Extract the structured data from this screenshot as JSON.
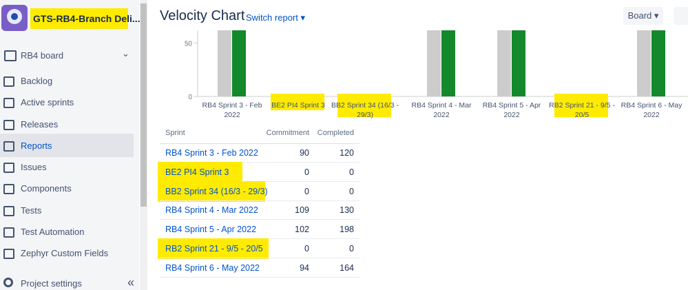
{
  "sidebar": {
    "project_name": "GTS-RB4-Branch Deli...",
    "board": "RB4 board",
    "items": [
      "Backlog",
      "Active sprints",
      "Releases",
      "Reports",
      "Issues",
      "Components",
      "Tests",
      "Test Automation",
      "Zephyr Custom Fields"
    ],
    "footer": "Project settings"
  },
  "header": {
    "title": "Velocity Chart",
    "switch_report": "Switch report",
    "board_button": "Board"
  },
  "chart": {
    "ylim": [
      0,
      62
    ],
    "yticks": [
      0,
      50
    ],
    "colors": {
      "commitment": "#cccccc",
      "completed": "#14892c"
    }
  },
  "table": {
    "columns": [
      "Sprint",
      "Commitment",
      "Completed"
    ],
    "rows": [
      {
        "sprint": "RB4 Sprint 3 - Feb 2022",
        "commitment": 90,
        "completed": 120
      },
      {
        "sprint": "BE2 PI4 Sprint 3",
        "commitment": 0,
        "completed": 0
      },
      {
        "sprint": "BB2 Sprint 34 (16/3 - 29/3)",
        "commitment": 0,
        "completed": 0
      },
      {
        "sprint": "RB4 Sprint 4 - Mar 2022",
        "commitment": 109,
        "completed": 130
      },
      {
        "sprint": "RB4 Sprint 5 - Apr 2022",
        "commitment": 102,
        "completed": 198
      },
      {
        "sprint": "RB2 Sprint 21 - 9/5 - 20/5",
        "commitment": 0,
        "completed": 0
      },
      {
        "sprint": "RB4 Sprint 6 - May 2022",
        "commitment": 94,
        "completed": 164
      }
    ]
  }
}
